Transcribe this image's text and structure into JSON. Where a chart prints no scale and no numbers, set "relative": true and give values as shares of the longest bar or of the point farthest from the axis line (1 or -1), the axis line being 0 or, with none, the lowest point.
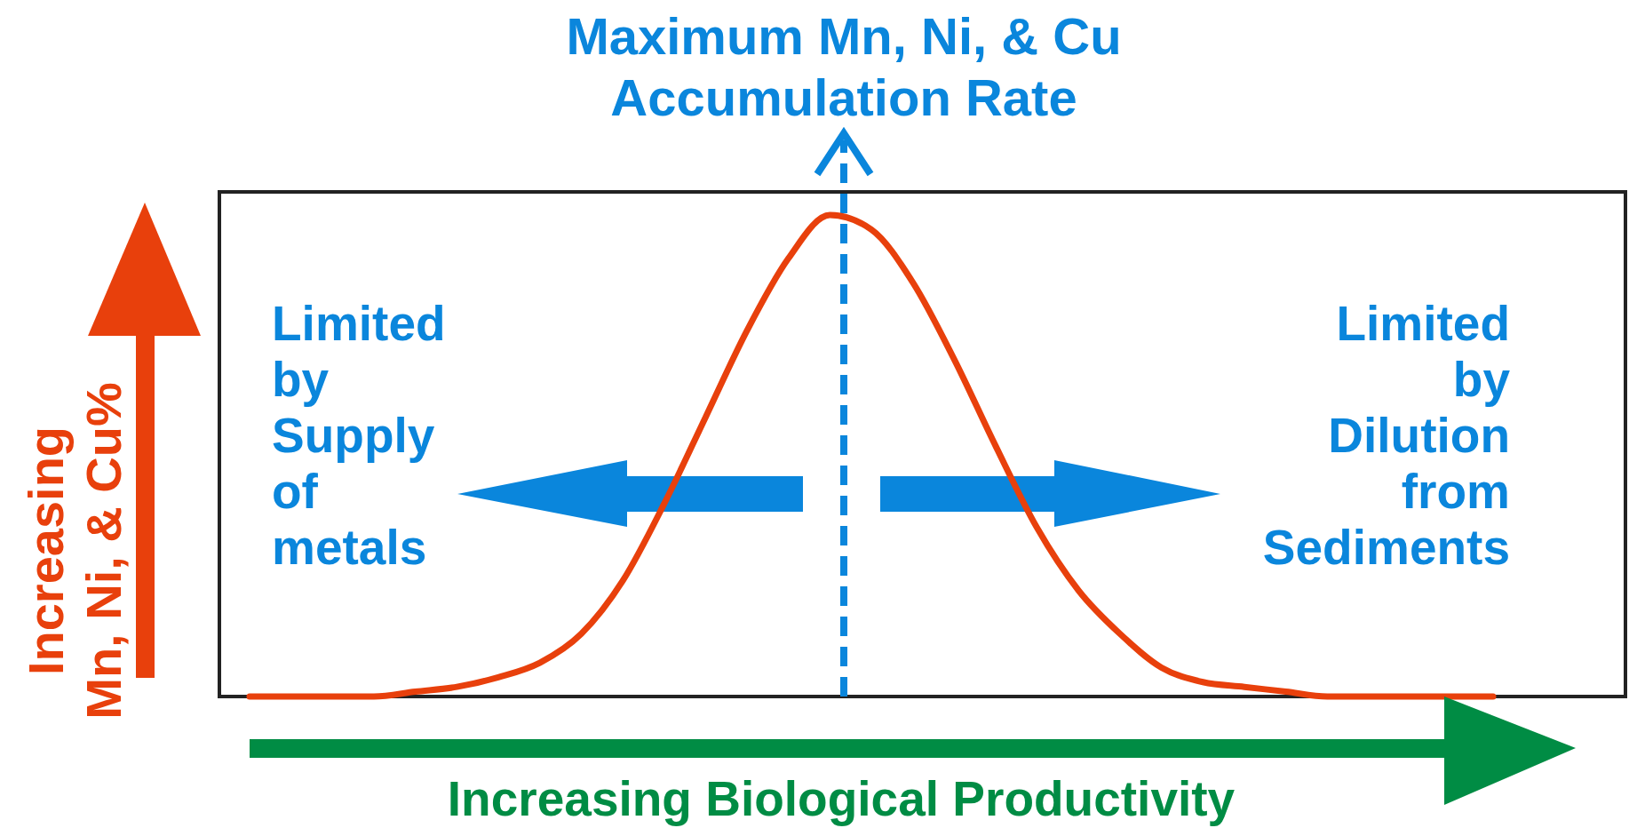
{
  "chart_data": {
    "type": "line",
    "title": "Maximum Mn, Ni, & Cu\nAccumulation Rate",
    "xlabel": "Increasing Biological Productivity",
    "ylabel": "Increasing\nMn, Ni, & Cu%",
    "relative": true,
    "color": "#e8400c",
    "categories": [
      null,
      null,
      null,
      null,
      null,
      null,
      null,
      null,
      null,
      null,
      null,
      null,
      null,
      null,
      null,
      null,
      null,
      null,
      null,
      null,
      null,
      null,
      null,
      null,
      null,
      null,
      null,
      null,
      null,
      null,
      null
    ],
    "values": [
      0,
      0,
      0,
      0,
      0.01,
      0.02,
      0.04,
      0.07,
      0.13,
      0.24,
      0.4,
      0.58,
      0.76,
      0.91,
      1,
      0.97,
      0.86,
      0.7,
      0.52,
      0.35,
      0.22,
      0.13,
      0.06,
      0.03,
      0.02,
      0.01,
      0,
      0,
      0,
      0,
      0
    ],
    "annotations": [
      "Limited\nby\nSupply\nof\nmetals",
      "Limited\nby\nDilution\nfrom\nSediments"
    ]
  }
}
